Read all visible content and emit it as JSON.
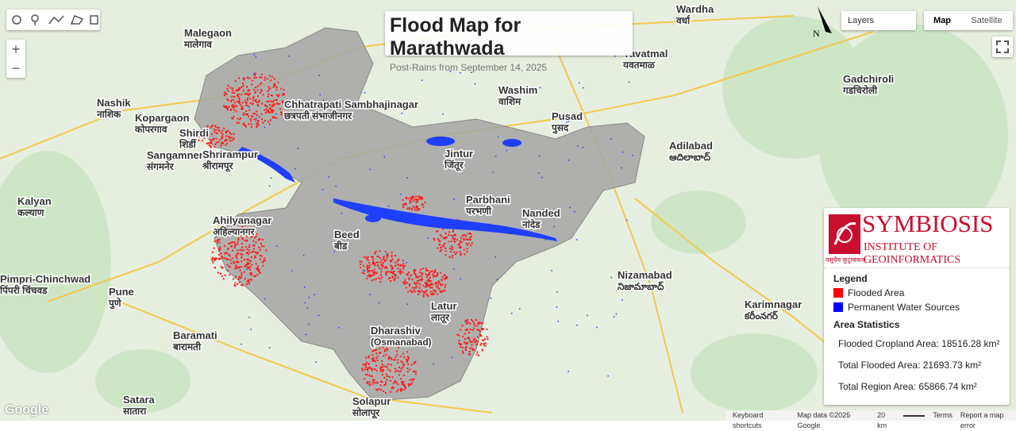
{
  "title": "Flood Map for Marathwada",
  "subtitle": "Post-Rains from September 14, 2025",
  "map_controls": {
    "zoom_in": "+",
    "zoom_out": "−",
    "layers": "Layers",
    "map": "Map",
    "satellite": "Satellite",
    "north": "N"
  },
  "logo": {
    "name": "SYMBIOSIS",
    "subtitle": "INSTITUTE OF GEOINFORMATICS",
    "tagline": "वसुधैव कुटुम्बकम्"
  },
  "legend": {
    "title": "Legend",
    "items": [
      {
        "label": "Flooded Area",
        "color": "#ff0000"
      },
      {
        "label": "Permanent Water Sources",
        "color": "#0000ff"
      }
    ]
  },
  "stats": {
    "title": "Area Statistics",
    "items": [
      "Flooded Cropland Area: 18516.28 km²",
      "Total Flooded Area: 21693.73 km²",
      "Total Region Area: 65866.74 km²"
    ]
  },
  "footer": {
    "google": "Google",
    "shortcuts": "Keyboard shortcuts",
    "map_data": "Map data ©2025 Google",
    "scale": "20 km",
    "terms": "Terms",
    "report": "Report a map error"
  },
  "places": [
    {
      "name": "Malegaon",
      "local": "मालेगाव"
    },
    {
      "name": "Nashik",
      "local": "नाशिक"
    },
    {
      "name": "Kopargaon",
      "local": "कोपरगाव"
    },
    {
      "name": "Shirdi",
      "local": "शिर्डी"
    },
    {
      "name": "Sangamner",
      "local": "संगमनेर"
    },
    {
      "name": "Shrirampur",
      "local": "श्रीरामपूर"
    },
    {
      "name": "Chhatrapati Sambhajinagar",
      "local": "छत्रपती संभाजीनगर"
    },
    {
      "name": "Kalyan",
      "local": "कल्याण"
    },
    {
      "name": "Ahilyanagar",
      "local": "अहिल्यानगर"
    },
    {
      "name": "Pimpri-Chinchwad",
      "local": "पिंपरी चिंचवड"
    },
    {
      "name": "Pune",
      "local": "पुणे"
    },
    {
      "name": "Beed",
      "local": "बीड"
    },
    {
      "name": "Parbhani",
      "local": "परभणी"
    },
    {
      "name": "Jintur",
      "local": "जिंतूर"
    },
    {
      "name": "Nanded",
      "local": "नांदेड"
    },
    {
      "name": "Latur",
      "local": "लातूर"
    },
    {
      "name": "Dharashiv",
      "local": "(Osmanabad)"
    },
    {
      "name": "Baramati",
      "local": "बारामती"
    },
    {
      "name": "Solapur",
      "local": "सोलापूर"
    },
    {
      "name": "Satara",
      "local": "सातारा"
    },
    {
      "name": "Washim",
      "local": "वाशिम"
    },
    {
      "name": "Pusad",
      "local": "पुसद"
    },
    {
      "name": "Yavatmal",
      "local": "यवतमाळ"
    },
    {
      "name": "Wardha",
      "local": "वर्धा"
    },
    {
      "name": "Adilabad",
      "local": "ఆదిలాబాద్"
    },
    {
      "name": "Nizamabad",
      "local": "నిజామాబాద్"
    },
    {
      "name": "Karimnagar",
      "local": "కరీంనగర్"
    },
    {
      "name": "Gadchiroli",
      "local": "गडचिरोली"
    }
  ]
}
